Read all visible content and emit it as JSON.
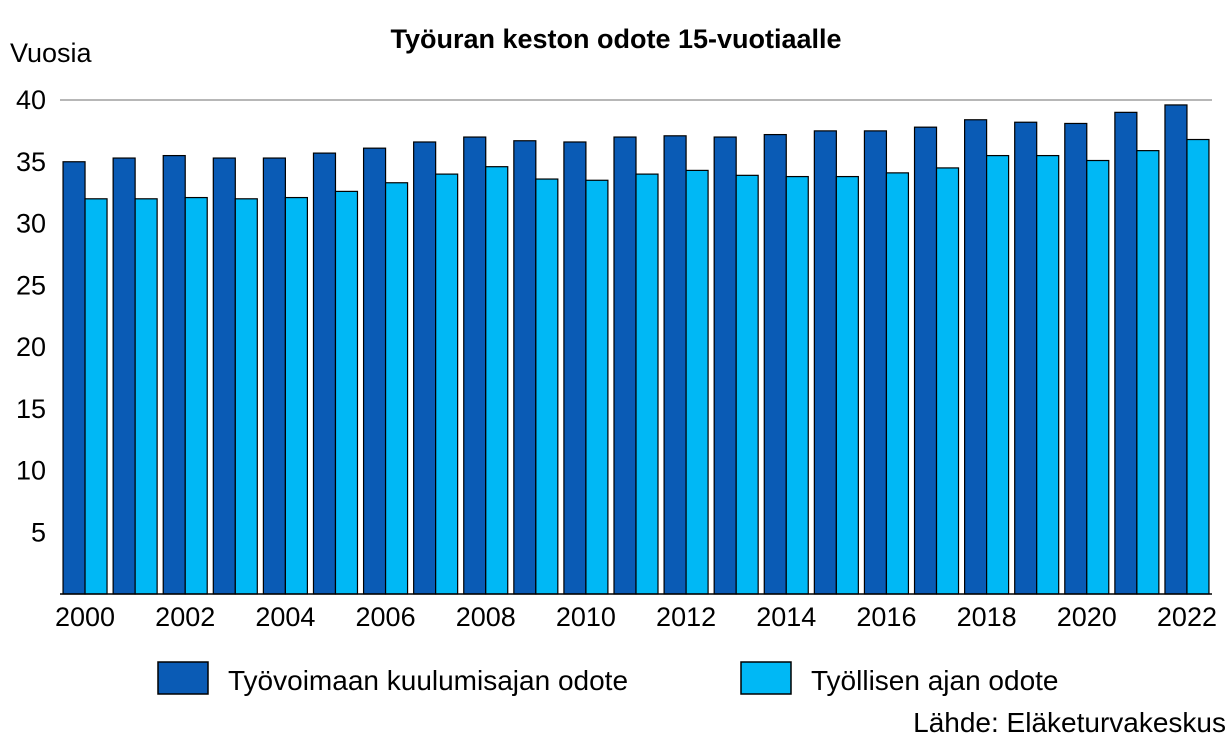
{
  "chart_data": {
    "type": "bar",
    "title": "Työuran keston odote 15-vuotiaalle",
    "ylabel": "Vuosia",
    "xlabel": "",
    "ylim": [
      0,
      40
    ],
    "yticks": [
      5,
      10,
      15,
      20,
      25,
      30,
      35,
      40
    ],
    "grid": "horizontal line at 40",
    "categories": [
      "2000",
      "2001",
      "2002",
      "2003",
      "2004",
      "2005",
      "2006",
      "2007",
      "2008",
      "2009",
      "2010",
      "2011",
      "2012",
      "2013",
      "2014",
      "2015",
      "2016",
      "2017",
      "2018",
      "2019",
      "2020",
      "2021",
      "2022"
    ],
    "x_tick_labels": [
      "2000",
      "2002",
      "2004",
      "2006",
      "2008",
      "2010",
      "2012",
      "2014",
      "2016",
      "2018",
      "2020",
      "2022"
    ],
    "series": [
      {
        "name": "Työvoimaan kuulumisajan odote",
        "color": "#0a5bb5",
        "values": [
          35.0,
          35.3,
          35.5,
          35.3,
          35.3,
          35.7,
          36.1,
          36.6,
          37.0,
          36.7,
          36.6,
          37.0,
          37.1,
          37.0,
          37.2,
          37.5,
          37.5,
          37.8,
          38.4,
          38.2,
          38.1,
          39.0,
          39.6
        ]
      },
      {
        "name": "Työllisen ajan odote",
        "color": "#00b8f5",
        "values": [
          32.0,
          32.0,
          32.1,
          32.0,
          32.1,
          32.6,
          33.3,
          34.0,
          34.6,
          33.6,
          33.5,
          34.0,
          34.3,
          33.9,
          33.8,
          33.8,
          34.1,
          34.5,
          35.5,
          35.5,
          35.1,
          35.9,
          36.8
        ]
      }
    ],
    "legend_position": "bottom",
    "source": "Lähde: Eläketurvakeskus"
  }
}
